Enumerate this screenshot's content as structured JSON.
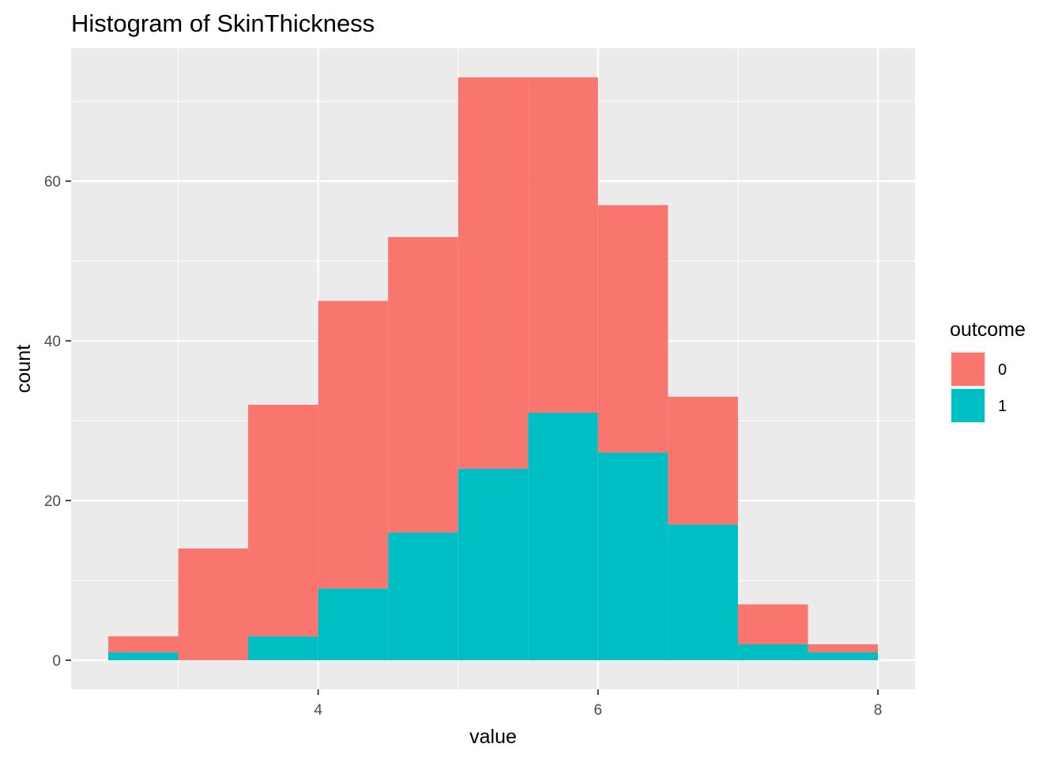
{
  "chart_data": {
    "type": "bar",
    "subtype": "stacked-histogram",
    "title": "Histogram of SkinThickness",
    "xlabel": "value",
    "ylabel": "count",
    "xlim": [
      2.235,
      8.265
    ],
    "ylim": [
      -3.65,
      76.65
    ],
    "x_ticks": [
      4,
      6,
      8
    ],
    "y_ticks": [
      0,
      20,
      40,
      60
    ],
    "x_minor_ticks": [
      3,
      5,
      7
    ],
    "y_minor_ticks": [
      10,
      30,
      50,
      70
    ],
    "grid": true,
    "bin_width": 0.5,
    "bins_start": [
      2.5,
      3.0,
      3.5,
      4.0,
      4.5,
      5.0,
      5.5,
      6.0,
      6.5,
      7.0,
      7.5
    ],
    "series": [
      {
        "name": "0",
        "color": "#F8766D",
        "values": [
          2,
          14,
          29,
          36,
          37,
          49,
          42,
          31,
          16,
          5,
          1
        ]
      },
      {
        "name": "1",
        "color": "#00BFC4",
        "values": [
          1,
          0,
          3,
          9,
          16,
          24,
          31,
          26,
          17,
          2,
          1
        ]
      }
    ],
    "legend": {
      "title": "outcome",
      "position": "right",
      "entries": [
        "0",
        "1"
      ]
    }
  }
}
